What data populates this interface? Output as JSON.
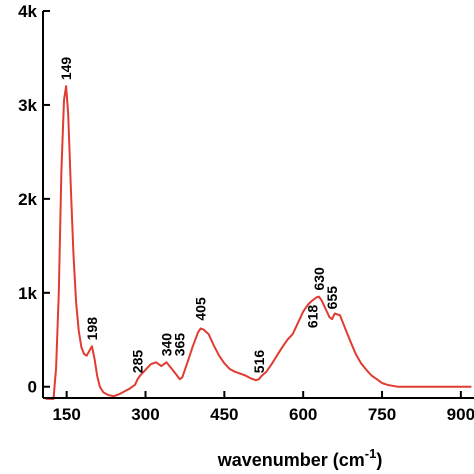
{
  "chart_data": {
    "type": "line",
    "title": "",
    "xlabel": "wavenumber (cm",
    "xlabel_sup": "-1",
    "xlabel_close": ")",
    "ylabel": "",
    "xlim": [
      105,
      925
    ],
    "ylim": [
      -120,
      4000
    ],
    "x_ticks": [
      {
        "value": 150,
        "label": "150"
      },
      {
        "value": 300,
        "label": "300"
      },
      {
        "value": 450,
        "label": "450"
      },
      {
        "value": 600,
        "label": "600"
      },
      {
        "value": 750,
        "label": "750"
      },
      {
        "value": 900,
        "label": "900"
      }
    ],
    "y_ticks": [
      {
        "value": 0,
        "label": "0"
      },
      {
        "value": 1000,
        "label": "1k"
      },
      {
        "value": 2000,
        "label": "2k"
      },
      {
        "value": 3000,
        "label": "3k"
      },
      {
        "value": 4000,
        "label": "4k"
      }
    ],
    "line_color": "#e03c31",
    "series": [
      {
        "x": [
          110,
          125,
          130,
          135,
          140,
          145,
          149,
          153,
          158,
          163,
          168,
          173,
          178,
          183,
          188,
          193,
          198,
          203,
          208,
          213,
          220,
          230,
          240,
          250,
          260,
          270,
          280,
          285,
          290,
          300,
          310,
          320,
          330,
          340,
          350,
          360,
          365,
          370,
          380,
          390,
          400,
          405,
          410,
          420,
          430,
          440,
          450,
          460,
          470,
          480,
          490,
          500,
          510,
          516,
          520,
          530,
          540,
          550,
          560,
          570,
          580,
          590,
          600,
          610,
          618,
          625,
          630,
          635,
          640,
          650,
          655,
          660,
          670,
          680,
          690,
          700,
          710,
          720,
          730,
          740,
          750,
          760,
          770,
          780,
          790,
          800,
          820,
          840,
          860,
          880,
          900,
          920
        ],
        "y": [
          -130,
          -130,
          200,
          1000,
          2300,
          3050,
          3200,
          2900,
          2100,
          1400,
          900,
          600,
          420,
          350,
          330,
          380,
          430,
          300,
          120,
          0,
          -60,
          -90,
          -100,
          -80,
          -50,
          -20,
          20,
          80,
          120,
          180,
          240,
          260,
          220,
          260,
          190,
          120,
          80,
          100,
          260,
          430,
          580,
          620,
          610,
          560,
          440,
          330,
          250,
          190,
          160,
          140,
          120,
          90,
          70,
          80,
          110,
          160,
          240,
          330,
          420,
          500,
          560,
          680,
          800,
          880,
          920,
          950,
          960,
          920,
          860,
          740,
          720,
          780,
          760,
          620,
          480,
          350,
          250,
          180,
          120,
          80,
          40,
          20,
          10,
          0,
          0,
          0,
          0,
          0,
          0,
          0,
          0,
          0
        ]
      }
    ],
    "peak_labels": [
      {
        "x": 149,
        "y": 3200,
        "text": "149"
      },
      {
        "x": 198,
        "y": 430,
        "text": "198"
      },
      {
        "x": 285,
        "y": 80,
        "text": "285"
      },
      {
        "x": 340,
        "y": 260,
        "text": "340"
      },
      {
        "x": 365,
        "y": 260,
        "text": "365"
      },
      {
        "x": 405,
        "y": 640,
        "text": "405"
      },
      {
        "x": 516,
        "y": 80,
        "text": "516"
      },
      {
        "x": 618,
        "y": 560,
        "text": "618"
      },
      {
        "x": 630,
        "y": 960,
        "text": "630"
      },
      {
        "x": 655,
        "y": 760,
        "text": "655"
      }
    ]
  }
}
